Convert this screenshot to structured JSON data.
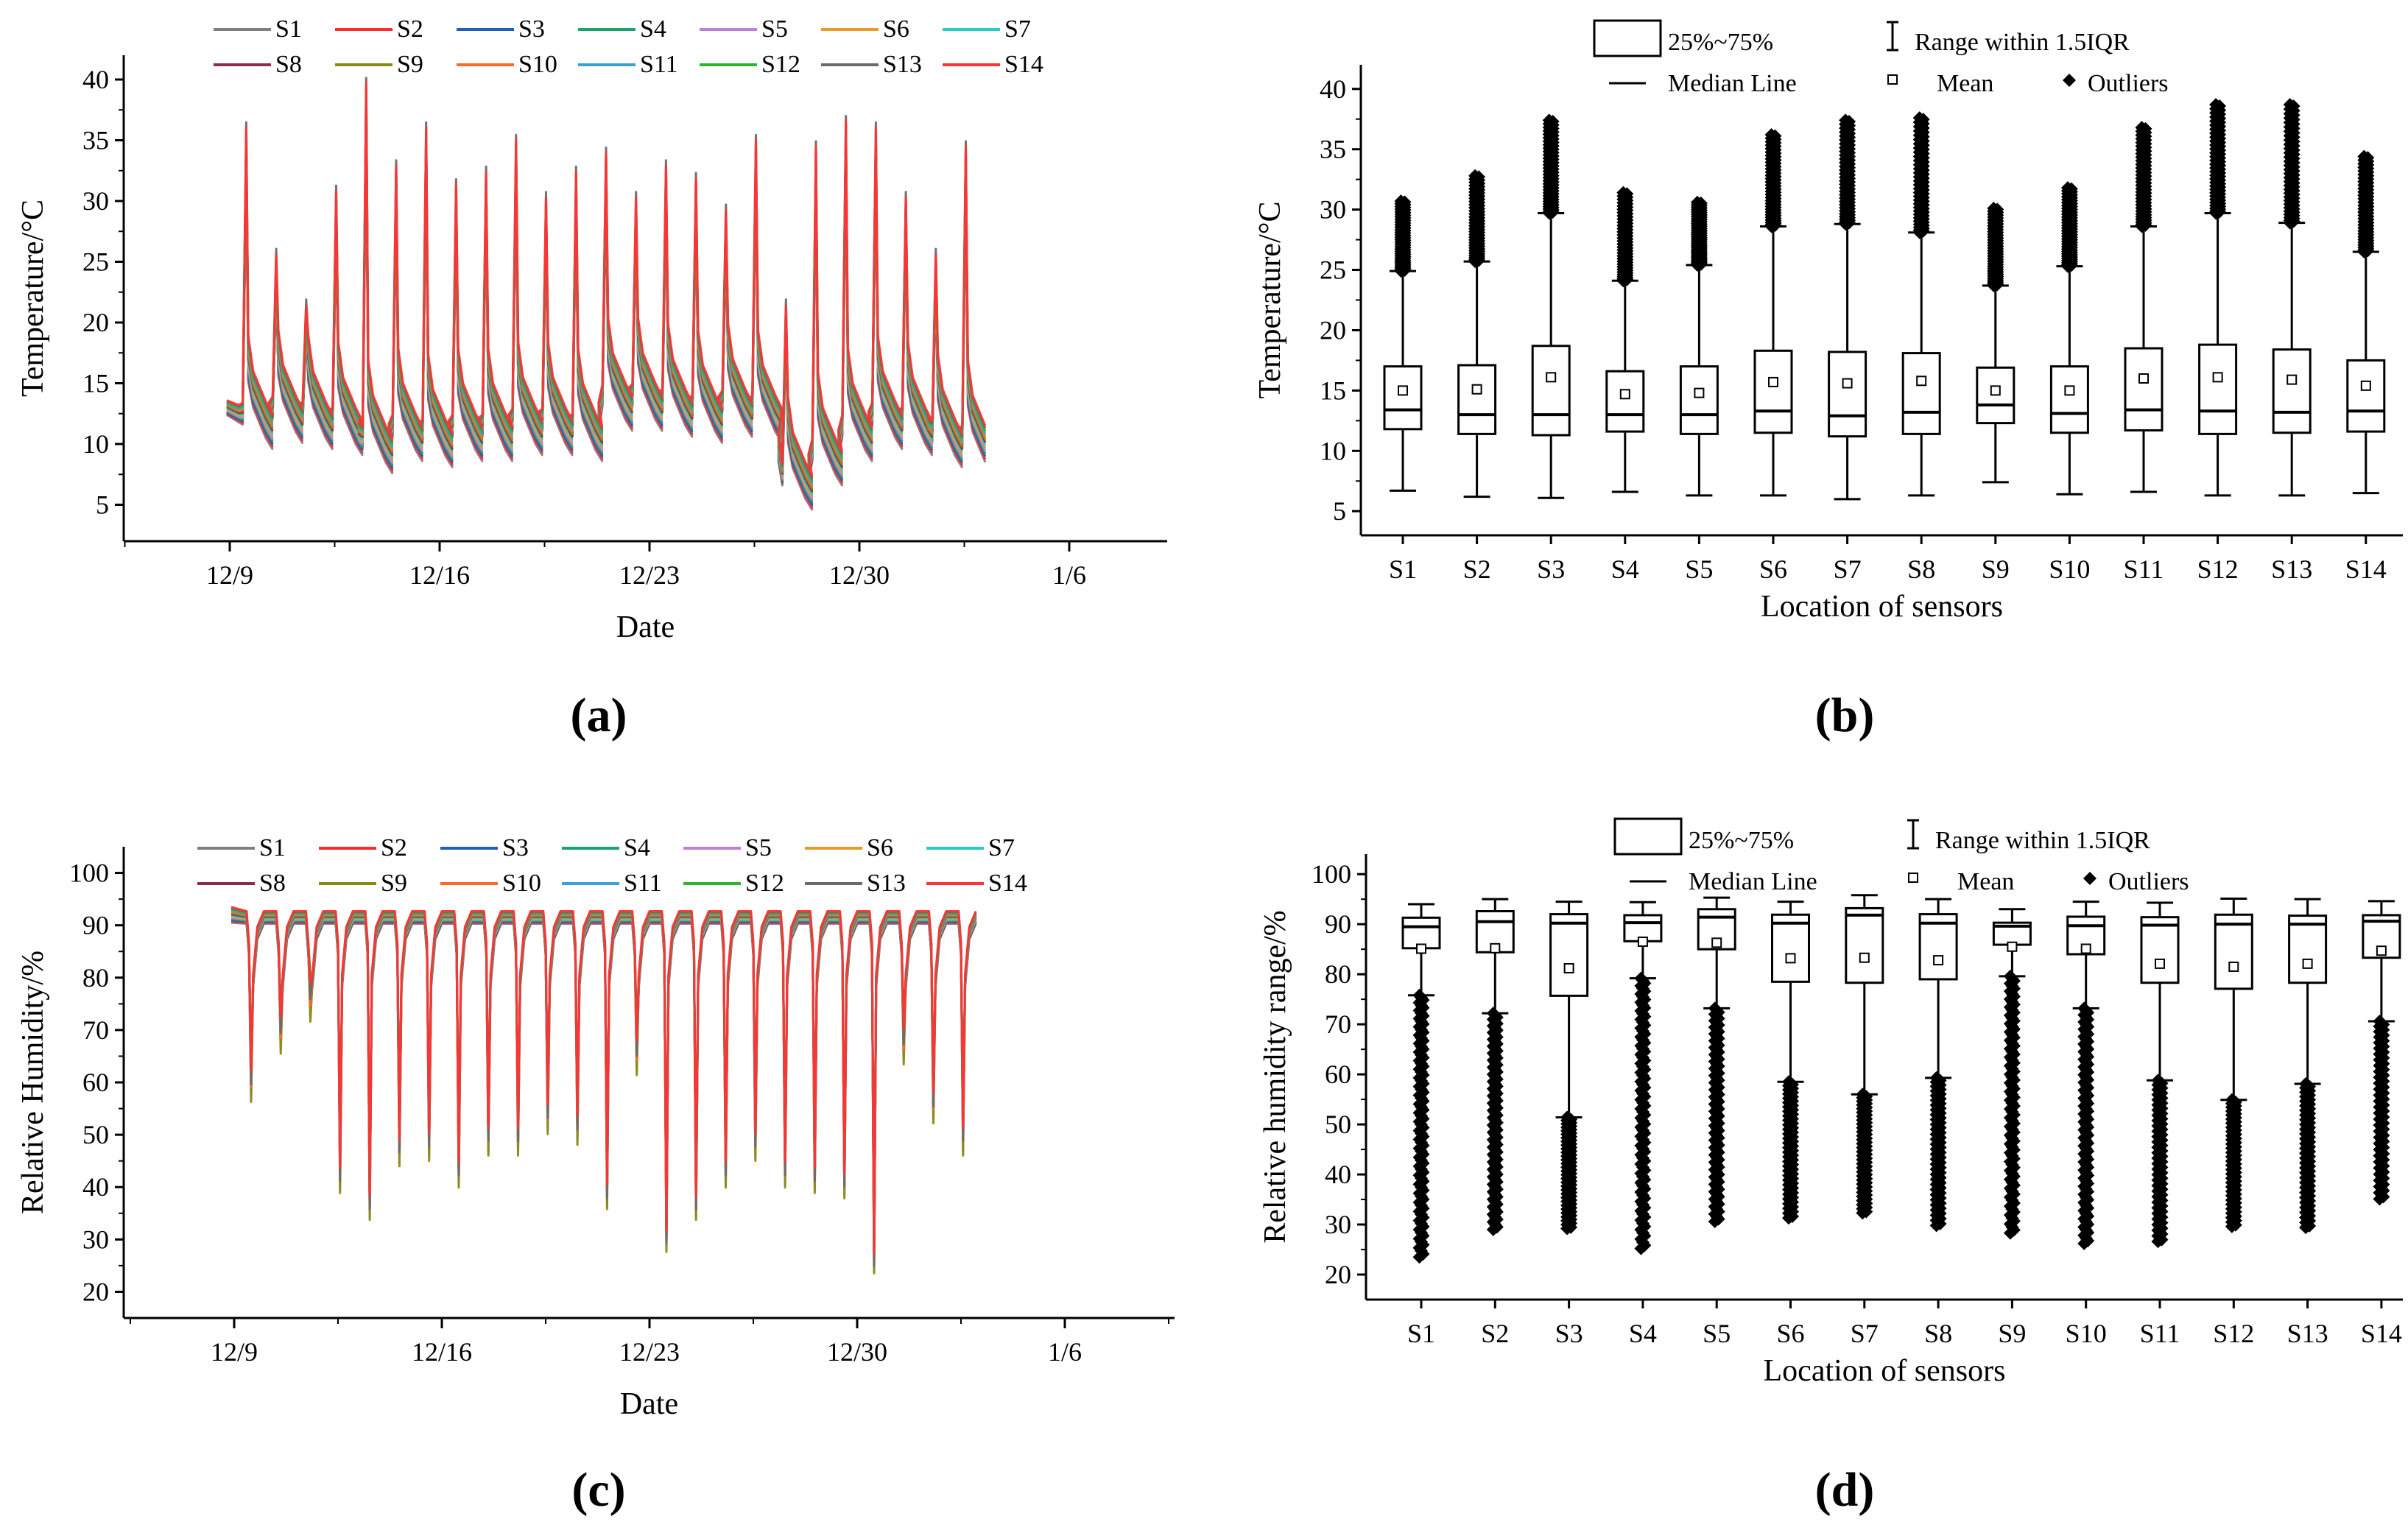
{
  "legend_text": {
    "box": "25%~75%",
    "range": "Range within 1.5IQR",
    "median": "Median Line",
    "mean": "Mean",
    "outliers": "Outliers"
  },
  "series_colors": [
    "#7f7f7f",
    "#ff2a2a",
    "#1f5fbf",
    "#1aa36b",
    "#c07fd9",
    "#e89a26",
    "#27c9c9",
    "#8b2e4a",
    "#8a8a14",
    "#ff6a2a",
    "#3aa0d8",
    "#2bb72b",
    "#6a6a6a",
    "#ff3333"
  ],
  "chart_data": [
    {
      "panel": "(a)",
      "panel_label": "(a)",
      "type": "line",
      "title": "",
      "xlabel": "Date",
      "ylabel": "Temperature/°C",
      "xticks": [
        "12/9",
        "12/16",
        "12/23",
        "12/30",
        "1/6"
      ],
      "yticks": [
        "5",
        "10",
        "15",
        "20",
        "25",
        "30",
        "35",
        "40"
      ],
      "ylim": [
        2,
        42
      ],
      "series": [
        "S1",
        "S2",
        "S3",
        "S4",
        "S5",
        "S6",
        "S7",
        "S8",
        "S9",
        "S10",
        "S11",
        "S12",
        "S13",
        "S14"
      ],
      "daily_peak": [
        35,
        25,
        21,
        30,
        38.5,
        32,
        35,
        30.5,
        31.5,
        34,
        29.5,
        31.5,
        33,
        29.5,
        32,
        31,
        28.5,
        34,
        21,
        33.5,
        35.5,
        35,
        29.5,
        25,
        33.5
      ],
      "daily_min": [
        11,
        11.5,
        11,
        10.5,
        9,
        10,
        9.5,
        10,
        10,
        10.5,
        10.5,
        10,
        12.5,
        12.5,
        12,
        11.5,
        12,
        11.5,
        6,
        8,
        10,
        11,
        10.5,
        9.5,
        9
      ]
    },
    {
      "panel": "(b)",
      "panel_label": "(b)",
      "type": "box",
      "xlabel": "Location of sensors",
      "ylabel": "Temperature/°C",
      "yticks": [
        "5",
        "10",
        "15",
        "20",
        "25",
        "30",
        "35",
        "40"
      ],
      "ylim": [
        3,
        42
      ],
      "categories": [
        "S1",
        "S2",
        "S3",
        "S4",
        "S5",
        "S6",
        "S7",
        "S8",
        "S9",
        "S10",
        "S11",
        "S12",
        "S13",
        "S14"
      ],
      "whisker_low": [
        6.7,
        6.2,
        6.1,
        6.6,
        6.3,
        6.3,
        6.0,
        6.3,
        7.4,
        6.4,
        6.6,
        6.3,
        6.3,
        6.5
      ],
      "q1": [
        11.8,
        11.4,
        11.3,
        11.6,
        11.4,
        11.5,
        11.2,
        11.4,
        12.3,
        11.5,
        11.7,
        11.4,
        11.5,
        11.6
      ],
      "median": [
        13.4,
        13.0,
        13.0,
        13.0,
        13.0,
        13.3,
        12.9,
        13.2,
        13.8,
        13.1,
        13.4,
        13.3,
        13.2,
        13.3
      ],
      "q3": [
        17.0,
        17.1,
        18.7,
        16.6,
        17.0,
        18.3,
        18.2,
        18.1,
        16.9,
        17.0,
        18.5,
        18.8,
        18.4,
        17.5
      ],
      "whisker_high": [
        24.9,
        25.7,
        29.7,
        24.1,
        25.4,
        28.6,
        28.8,
        28.1,
        23.7,
        25.3,
        28.6,
        29.7,
        28.9,
        26.5
      ],
      "mean": [
        15.0,
        15.1,
        16.1,
        14.7,
        14.8,
        15.7,
        15.6,
        15.8,
        15.0,
        15.0,
        16.0,
        16.1,
        15.9,
        15.4
      ],
      "outlier_max": [
        30.7,
        32.8,
        37.4,
        31.4,
        30.6,
        36.2,
        37.4,
        37.6,
        30.1,
        31.8,
        36.8,
        38.7,
        38.7,
        34.4
      ]
    },
    {
      "panel": "(c)",
      "panel_label": "(c)",
      "type": "line",
      "title": "",
      "xlabel": "Date",
      "ylabel": "Relative Humidity/%",
      "xticks": [
        "12/9",
        "12/16",
        "12/23",
        "12/30",
        "1/6"
      ],
      "yticks": [
        "20",
        "30",
        "40",
        "50",
        "60",
        "70",
        "80",
        "90",
        "100"
      ],
      "ylim": [
        15,
        105
      ],
      "series": [
        "S1",
        "S2",
        "S3",
        "S4",
        "S5",
        "S6",
        "S7",
        "S8",
        "S9",
        "S10",
        "S11",
        "S12",
        "S13",
        "S14"
      ],
      "daily_trough": [
        55,
        64,
        70,
        38,
        33,
        43,
        44,
        39,
        45,
        45,
        49,
        47,
        35,
        60,
        27,
        33,
        39,
        44,
        39,
        38,
        37,
        23,
        62,
        51,
        45
      ],
      "daily_plateau": [
        93,
        93,
        93,
        93,
        93,
        93,
        93,
        93,
        93,
        93,
        93,
        93,
        93,
        93,
        93,
        93,
        93,
        93,
        93,
        93,
        93,
        93,
        93,
        93,
        93
      ]
    },
    {
      "panel": "(d)",
      "panel_label": "(d)",
      "type": "box",
      "xlabel": "Location of sensors",
      "ylabel": "Relative humidity range/%",
      "yticks": [
        "20",
        "30",
        "40",
        "50",
        "60",
        "70",
        "80",
        "90",
        "100"
      ],
      "ylim": [
        15,
        104
      ],
      "categories": [
        "S1",
        "S2",
        "S3",
        "S4",
        "S5",
        "S6",
        "S7",
        "S8",
        "S9",
        "S10",
        "S11",
        "S12",
        "S13",
        "S14"
      ],
      "whisker_low": [
        75.8,
        72.2,
        51.4,
        79.2,
        73.2,
        58.5,
        56.0,
        59.3,
        79.6,
        73.2,
        58.8,
        54.9,
        58.1,
        70.6
      ],
      "q1": [
        85.2,
        84.4,
        75.7,
        86.6,
        85.0,
        78.5,
        78.3,
        79.0,
        85.9,
        84.0,
        78.3,
        77.1,
        78.3,
        83.3
      ],
      "median": [
        89.5,
        90.5,
        90.2,
        90.3,
        91.4,
        90.2,
        91.8,
        90.2,
        89.6,
        89.7,
        89.8,
        90.0,
        90.0,
        90.6
      ],
      "q3": [
        91.3,
        92.6,
        92.0,
        91.8,
        93.0,
        91.9,
        93.2,
        92.0,
        90.3,
        91.5,
        91.4,
        91.9,
        91.7,
        91.8
      ],
      "whisker_high": [
        94.0,
        95.0,
        94.5,
        94.4,
        95.3,
        94.5,
        95.8,
        95.0,
        93.0,
        94.5,
        94.3,
        95.1,
        95.0,
        94.6
      ],
      "mean": [
        85.1,
        85.2,
        81.2,
        86.5,
        86.3,
        83.2,
        83.3,
        82.8,
        85.5,
        85.1,
        82.1,
        81.5,
        82.1,
        84.7
      ],
      "outlier_min": [
        23.5,
        29.0,
        29.2,
        25.2,
        30.6,
        31.3,
        32.3,
        29.8,
        28.3,
        26.2,
        26.6,
        29.6,
        29.4,
        35.1
      ]
    }
  ]
}
